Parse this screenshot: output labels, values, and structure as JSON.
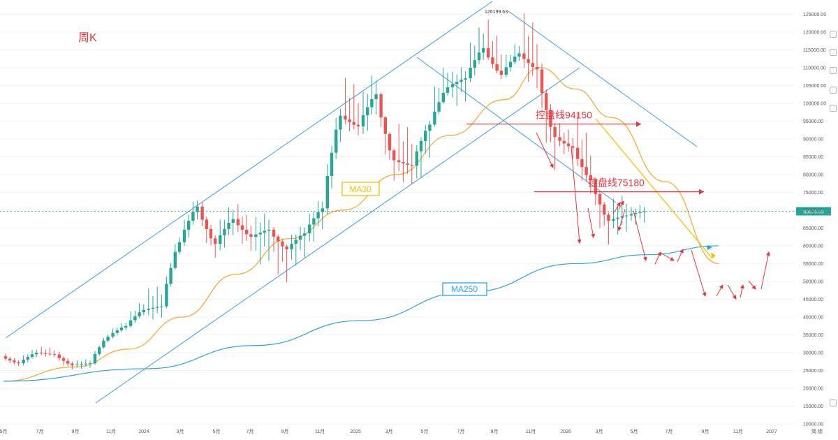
{
  "chart_data": {
    "type": "candlestick",
    "title": "周K",
    "y_ticks": [
      10000,
      15000,
      20000,
      25000,
      30000,
      35000,
      40000,
      45000,
      50000,
      55000,
      60000,
      65000,
      70000,
      75000,
      80000,
      85000,
      90000,
      95000,
      100000,
      105000,
      110000,
      115000,
      120000,
      125000
    ],
    "y_tick_labels": [
      "10000.00",
      "15000.00",
      "20000.00",
      "25000.00",
      "30000.00",
      "35000.00",
      "40000.00",
      "45000.00",
      "50000.00",
      "55000.00",
      "60000.00",
      "65000.00",
      "70000.00",
      "75000.00",
      "80000.00",
      "85000.00",
      "90000.00",
      "95000.00",
      "100000.00",
      "105000.00",
      "110000.00",
      "115000.00",
      "120000.00",
      "125000.00"
    ],
    "ylim": [
      10000,
      128000
    ],
    "x_labels": [
      "5月",
      "7月",
      "9月",
      "11月",
      "2024",
      "3月",
      "5月",
      "7月",
      "9月",
      "11月",
      "2025",
      "3月",
      "5月",
      "7月",
      "9月",
      "11月",
      "2026",
      "3月",
      "5月",
      "7月",
      "9月",
      "11月",
      "2027"
    ],
    "x_range": [
      "2023-05",
      "2027-01"
    ],
    "current_price": 69676.09,
    "current_price_label": "69676.09",
    "high_marker_label": "126199.63",
    "bottom_right_label": "简 绩",
    "candles": [
      [
        "2023-05",
        29000,
        27000,
        29500,
        26500
      ],
      [
        "2023-06",
        27000,
        30000,
        31000,
        26500
      ],
      [
        "2023-07",
        30000,
        29500,
        31500,
        29000
      ],
      [
        "2023-08",
        29500,
        26500,
        30000,
        25500
      ],
      [
        "2023-09",
        26500,
        27000,
        28000,
        25500
      ],
      [
        "2023-10",
        27000,
        34500,
        35000,
        26800
      ],
      [
        "2023-11",
        34500,
        37500,
        38500,
        34000
      ],
      [
        "2023-12",
        37500,
        42000,
        44500,
        37000
      ],
      [
        "2024-01",
        42000,
        43000,
        49000,
        39000
      ],
      [
        "2024-02",
        43000,
        61000,
        63000,
        42500
      ],
      [
        "2024-03",
        61000,
        71000,
        73800,
        59000
      ],
      [
        "2024-04",
        71000,
        60500,
        72000,
        56500
      ],
      [
        "2024-05",
        60500,
        67500,
        72000,
        57000
      ],
      [
        "2024-06",
        67500,
        62500,
        71800,
        58500
      ],
      [
        "2024-07",
        62500,
        64500,
        69500,
        53500
      ],
      [
        "2024-08",
        64500,
        59000,
        65000,
        49000
      ],
      [
        "2024-09",
        59000,
        63500,
        66000,
        52500
      ],
      [
        "2024-10",
        63500,
        70500,
        73500,
        58500
      ],
      [
        "2024-11",
        70500,
        96500,
        99800,
        67000
      ],
      [
        "2024-12",
        96500,
        93500,
        108000,
        91000
      ],
      [
        "2025-01",
        93500,
        102500,
        109500,
        89000
      ],
      [
        "2025-02",
        102500,
        84000,
        102700,
        78000
      ],
      [
        "2025-03",
        84000,
        82500,
        95000,
        77000
      ],
      [
        "2025-04",
        82500,
        94000,
        95500,
        74500
      ],
      [
        "2025-05",
        94000,
        104500,
        112000,
        93500
      ],
      [
        "2025-06",
        104500,
        107000,
        110500,
        98000
      ],
      [
        "2025-07",
        107000,
        115500,
        123000,
        105000
      ],
      [
        "2025-08",
        115500,
        108000,
        124000,
        107000
      ],
      [
        "2025-09",
        108000,
        114000,
        117500,
        107000
      ],
      [
        "2025-10",
        114000,
        109500,
        126199.63,
        104000
      ],
      [
        "2025-11",
        109500,
        90500,
        111000,
        80600
      ],
      [
        "2025-12",
        90500,
        87500,
        94500,
        84500
      ],
      [
        "2026-01",
        87500,
        78500,
        97900,
        74500
      ],
      [
        "2026-02",
        78500,
        67000,
        79000,
        60000
      ],
      [
        "2026-03",
        67000,
        68500,
        74500,
        62500
      ],
      [
        "2026-04",
        68500,
        69676.09,
        71500,
        65500
      ]
    ],
    "series": [
      {
        "name": "MA30",
        "x": [
          "2023-05",
          "2023-09",
          "2023-12",
          "2024-03",
          "2024-06",
          "2024-09",
          "2024-12",
          "2025-03",
          "2025-06",
          "2025-09",
          "2025-11",
          "2026-01",
          "2026-03",
          "2026-06",
          "2026-09"
        ],
        "values": [
          22000,
          26000,
          31000,
          40000,
          52000,
          62000,
          70000,
          80000,
          91000,
          101000,
          110000,
          104000,
          96000,
          78000,
          55000
        ]
      },
      {
        "name": "MA250",
        "x": [
          "2023-05",
          "2024-01",
          "2024-07",
          "2025-01",
          "2025-07",
          "2026-01",
          "2026-05",
          "2026-09"
        ],
        "values": [
          22000,
          25500,
          32000,
          39000,
          47000,
          55000,
          57500,
          60000
        ]
      }
    ],
    "annotations": {
      "labels": [
        {
          "text": "控盘线94150",
          "value": 94150
        },
        {
          "text": "控盘线75180",
          "value": 75180
        },
        {
          "text": "MA30"
        },
        {
          "text": "MA250"
        }
      ]
    }
  }
}
